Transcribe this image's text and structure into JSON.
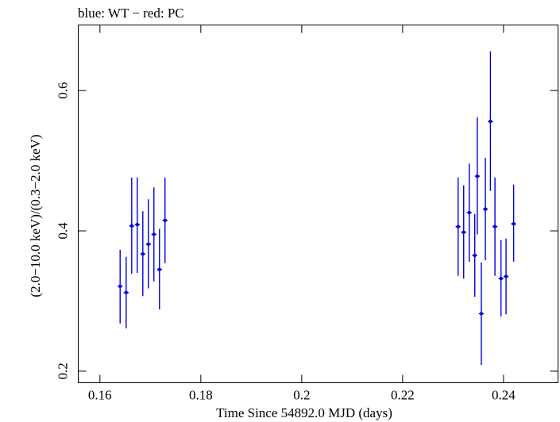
{
  "chart_data": {
    "type": "scatter",
    "title": "blue: WT − red: PC",
    "xlabel": "Time Since 54892.0 MJD (days)",
    "ylabel": "(2.0−10.0 keV)/(0.3−2.0 keV)",
    "xlim": [
      0.1557,
      0.2508
    ],
    "ylim": [
      0.1835,
      0.6935
    ],
    "xticks": [
      0.16,
      0.18,
      0.2,
      0.22,
      0.24
    ],
    "xtick_labels": [
      "0.16",
      "0.18",
      "0.2",
      "0.22",
      "0.24"
    ],
    "yticks": [
      0.2,
      0.4,
      0.6
    ],
    "ytick_labels": [
      "0.2",
      "0.4",
      "0.6"
    ],
    "grid": false,
    "series": [
      {
        "name": "WT",
        "color": "#0000dd",
        "points": [
          {
            "x": 0.164,
            "y": 0.321,
            "ylo": 0.268,
            "yhi": 0.373,
            "xerr": 0.0005
          },
          {
            "x": 0.1652,
            "y": 0.312,
            "ylo": 0.261,
            "yhi": 0.363,
            "xerr": 0.0005
          },
          {
            "x": 0.1663,
            "y": 0.407,
            "ylo": 0.339,
            "yhi": 0.476,
            "xerr": 0.0005
          },
          {
            "x": 0.1674,
            "y": 0.409,
            "ylo": 0.34,
            "yhi": 0.476,
            "xerr": 0.0005
          },
          {
            "x": 0.1685,
            "y": 0.367,
            "ylo": 0.307,
            "yhi": 0.428,
            "xerr": 0.0005
          },
          {
            "x": 0.1696,
            "y": 0.381,
            "ylo": 0.318,
            "yhi": 0.445,
            "xerr": 0.0005
          },
          {
            "x": 0.1707,
            "y": 0.395,
            "ylo": 0.328,
            "yhi": 0.462,
            "xerr": 0.0005
          },
          {
            "x": 0.1718,
            "y": 0.345,
            "ylo": 0.288,
            "yhi": 0.403,
            "xerr": 0.0005
          },
          {
            "x": 0.1729,
            "y": 0.415,
            "ylo": 0.354,
            "yhi": 0.476,
            "xerr": 0.0005
          },
          {
            "x": 0.231,
            "y": 0.406,
            "ylo": 0.336,
            "yhi": 0.476,
            "xerr": 0.0005
          },
          {
            "x": 0.2321,
            "y": 0.398,
            "ylo": 0.332,
            "yhi": 0.465,
            "xerr": 0.0005
          },
          {
            "x": 0.2332,
            "y": 0.426,
            "ylo": 0.356,
            "yhi": 0.496,
            "xerr": 0.0005
          },
          {
            "x": 0.2343,
            "y": 0.365,
            "ylo": 0.306,
            "yhi": 0.424,
            "xerr": 0.0005
          },
          {
            "x": 0.2348,
            "y": 0.478,
            "ylo": 0.395,
            "yhi": 0.562,
            "xerr": 0.0005
          },
          {
            "x": 0.2356,
            "y": 0.282,
            "ylo": 0.209,
            "yhi": 0.355,
            "xerr": 0.0005
          },
          {
            "x": 0.2364,
            "y": 0.431,
            "ylo": 0.358,
            "yhi": 0.504,
            "xerr": 0.0005
          },
          {
            "x": 0.2374,
            "y": 0.556,
            "ylo": 0.457,
            "yhi": 0.656,
            "xerr": 0.0005
          },
          {
            "x": 0.2383,
            "y": 0.406,
            "ylo": 0.336,
            "yhi": 0.476,
            "xerr": 0.0005
          },
          {
            "x": 0.2395,
            "y": 0.332,
            "ylo": 0.278,
            "yhi": 0.387,
            "xerr": 0.0005
          },
          {
            "x": 0.2405,
            "y": 0.335,
            "ylo": 0.281,
            "yhi": 0.389,
            "xerr": 0.0005
          },
          {
            "x": 0.242,
            "y": 0.41,
            "ylo": 0.356,
            "yhi": 0.466,
            "xerr": 0.0005
          }
        ]
      }
    ]
  }
}
